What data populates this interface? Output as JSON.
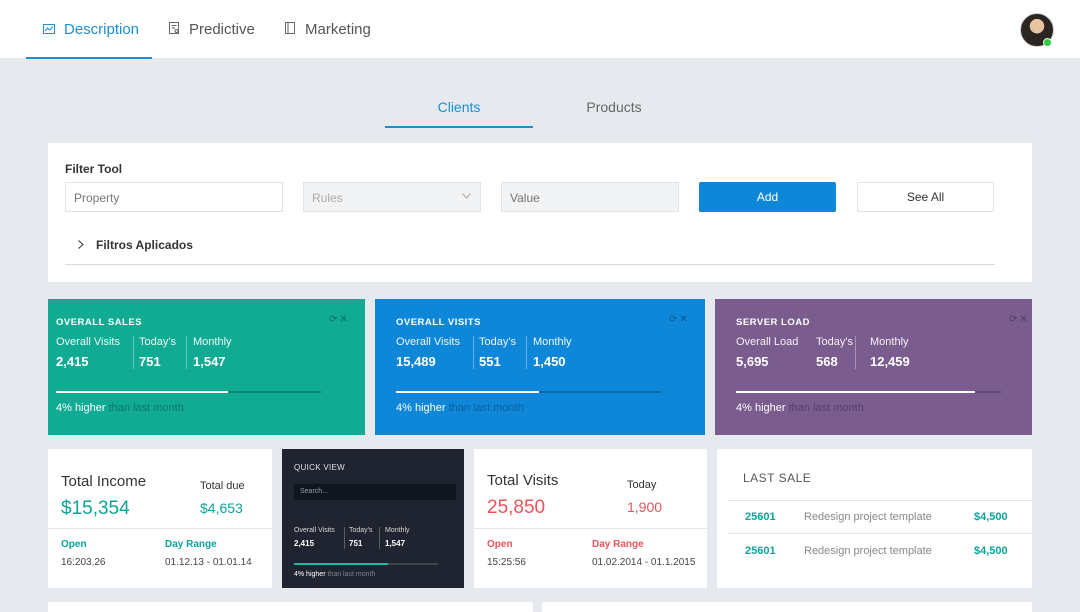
{
  "colors": {
    "accent": "#1a8fd6",
    "teal": "#11ab94",
    "blue": "#0f87d9",
    "purple": "#7a5c8f",
    "dark": "#1f2430",
    "income_teal": "#0aa39a",
    "visits_red": "#e8545c"
  },
  "top_nav": {
    "tabs": [
      {
        "label": "Description",
        "icon": "chart-icon",
        "active": true
      },
      {
        "label": "Predictive",
        "icon": "report-icon",
        "active": false
      },
      {
        "label": "Marketing",
        "icon": "bookmark-icon",
        "active": false
      }
    ],
    "user_status": "online"
  },
  "sub_tabs": [
    {
      "label": "Clients",
      "active": true
    },
    {
      "label": "Products",
      "active": false
    }
  ],
  "filter": {
    "title": "Filter Tool",
    "property_placeholder": "Property",
    "rules_placeholder": "Rules",
    "value_placeholder": "Value",
    "add_label": "Add",
    "see_all_label": "See All",
    "applied_label": "Filtros Aplicados"
  },
  "stats": [
    {
      "title": "OVERALL SALES",
      "cols": [
        {
          "label": "Overall Visits",
          "value": "2,415"
        },
        {
          "label": "Today's",
          "value": "751"
        },
        {
          "label": "Monthly",
          "value": "1,547"
        }
      ],
      "progress": 0.65,
      "note_hi": "4% higher",
      "note_lo": "than last month"
    },
    {
      "title": "OVERALL VISITS",
      "cols": [
        {
          "label": "Overall Visits",
          "value": "15,489"
        },
        {
          "label": "Today's",
          "value": "551"
        },
        {
          "label": "Monthly",
          "value": "1,450"
        }
      ],
      "progress": 0.54,
      "note_hi": "4% higher",
      "note_lo": "than last month"
    },
    {
      "title": "SERVER LOAD",
      "cols": [
        {
          "label": "Overall Load",
          "value": "5,695"
        },
        {
          "label": "Today's",
          "value": "568"
        },
        {
          "label": "Monthly",
          "value": "12,459"
        }
      ],
      "progress": 0.9,
      "note_hi": "4% higher",
      "note_lo": "than last month"
    }
  ],
  "income": {
    "title": "Total Income",
    "amount": "$15,354",
    "due_label": "Total due",
    "due_amount": "$4,653",
    "open_label": "Open",
    "open_value": "16:203.26",
    "range_label": "Day Range",
    "range_value": "01.12.13 - 01.01.14"
  },
  "quick_view": {
    "title": "QUICK VIEW",
    "search_placeholder": "Search...",
    "cols": [
      {
        "label": "Overall Visits",
        "value": "2,415"
      },
      {
        "label": "Today's",
        "value": "751"
      },
      {
        "label": "Monthly",
        "value": "1,547"
      }
    ],
    "progress": 0.65,
    "note_hi": "4% higher",
    "note_lo": "than last month"
  },
  "visits": {
    "title": "Total Visits",
    "amount": "25,850",
    "today_label": "Today",
    "today_amount": "1,900",
    "open_label": "Open",
    "open_value": "15:25:56",
    "range_label": "Day Range",
    "range_value": "01.02.2014 - 01.1.2015"
  },
  "last_sale": {
    "title": "LAST SALE",
    "rows": [
      {
        "id": "25601",
        "desc": "Redesign project template",
        "amount": "$4,500"
      },
      {
        "id": "25601",
        "desc": "Redesign project template",
        "amount": "$4,500"
      }
    ]
  }
}
